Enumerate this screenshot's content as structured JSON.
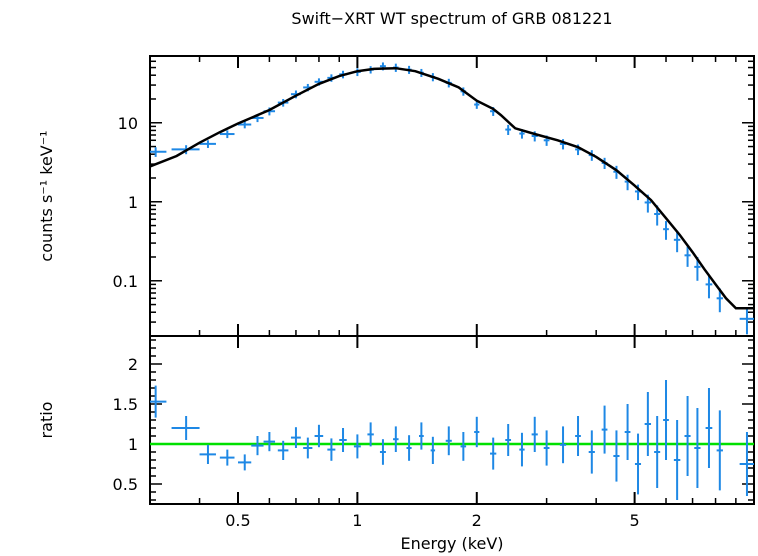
{
  "chart_data": [
    {
      "type": "scatter",
      "title": "Swift−XRT WT spectrum of GRB 081221",
      "xlabel": "",
      "ylabel": "counts s⁻¹ keV⁻¹",
      "xscale": "log",
      "yscale": "log",
      "xlim": [
        0.3,
        10
      ],
      "ylim": [
        0.02,
        70
      ],
      "yticks": [
        0.1,
        1,
        10
      ],
      "ytick_labels": [
        "0.1",
        "1",
        "10"
      ],
      "colors": {
        "data": "#1e88e5",
        "model": "#000000"
      },
      "series": [
        {
          "role": "data",
          "x": [
            0.31,
            0.37,
            0.42,
            0.47,
            0.52,
            0.56,
            0.6,
            0.65,
            0.7,
            0.75,
            0.8,
            0.86,
            0.92,
            1.0,
            1.08,
            1.16,
            1.25,
            1.35,
            1.45,
            1.55,
            1.7,
            1.85,
            2.0,
            2.2,
            2.4,
            2.6,
            2.8,
            3.0,
            3.3,
            3.6,
            3.9,
            4.2,
            4.5,
            4.8,
            5.1,
            5.4,
            5.7,
            6.0,
            6.4,
            6.8,
            7.2,
            7.7,
            8.2,
            9.6
          ],
          "y": [
            4.3,
            4.6,
            5.4,
            7.2,
            9.5,
            11.5,
            14,
            18,
            23,
            28,
            33,
            37,
            41,
            44,
            47,
            52,
            50,
            47,
            43,
            38,
            32,
            25,
            17,
            14,
            8.2,
            7.3,
            6.8,
            6.0,
            5.4,
            4.6,
            3.9,
            3.1,
            2.4,
            1.8,
            1.35,
            0.98,
            0.7,
            0.45,
            0.33,
            0.21,
            0.15,
            0.09,
            0.06,
            0.033
          ],
          "xerr": [
            0.02,
            0.03,
            0.02,
            0.02,
            0.02,
            0.02,
            0.02,
            0.02,
            0.02,
            0.02,
            0.02,
            0.02,
            0.02,
            0.02,
            0.02,
            0.02,
            0.02,
            0.02,
            0.02,
            0.02,
            0.03,
            0.03,
            0.03,
            0.04,
            0.04,
            0.04,
            0.05,
            0.05,
            0.06,
            0.06,
            0.07,
            0.07,
            0.08,
            0.08,
            0.09,
            0.1,
            0.1,
            0.1,
            0.12,
            0.12,
            0.13,
            0.15,
            0.15,
            0.4
          ],
          "yerr": [
            0.6,
            0.6,
            0.6,
            0.8,
            1.0,
            1.3,
            1.6,
            2.0,
            2.6,
            3.0,
            3.5,
            4.0,
            4.5,
            5.0,
            5.0,
            6.0,
            6.0,
            5.5,
            5.0,
            4.5,
            4.0,
            3.0,
            2.0,
            1.8,
            1.2,
            1.0,
            1.0,
            0.9,
            0.8,
            0.7,
            0.6,
            0.5,
            0.45,
            0.4,
            0.3,
            0.25,
            0.2,
            0.12,
            0.1,
            0.06,
            0.05,
            0.03,
            0.02,
            0.012
          ]
        },
        {
          "role": "model",
          "x": [
            0.3,
            0.35,
            0.4,
            0.45,
            0.5,
            0.55,
            0.6,
            0.7,
            0.8,
            0.9,
            1.0,
            1.1,
            1.25,
            1.4,
            1.6,
            1.8,
            2.0,
            2.2,
            2.3,
            2.5,
            2.8,
            3.2,
            3.6,
            4.0,
            4.5,
            5.0,
            5.5,
            6.0,
            6.5,
            7.0,
            7.5,
            8.0,
            8.5,
            9.0,
            10.0
          ],
          "y": [
            2.8,
            3.8,
            5.6,
            7.6,
            9.8,
            12,
            14.5,
            22,
            31,
            39,
            45,
            48,
            49,
            45,
            36,
            28,
            19,
            15,
            12.5,
            8.5,
            7.2,
            6.0,
            4.9,
            3.7,
            2.5,
            1.6,
            1.05,
            0.62,
            0.38,
            0.23,
            0.14,
            0.09,
            0.06,
            0.045,
            0.045
          ]
        }
      ]
    },
    {
      "type": "scatter",
      "title": "",
      "xlabel": "Energy (keV)",
      "ylabel": "ratio",
      "xscale": "log",
      "xlim": [
        0.3,
        10
      ],
      "ylim": [
        0.25,
        2.35
      ],
      "xticks": [
        0.5,
        1,
        2,
        5
      ],
      "xtick_labels": [
        "0.5",
        "1",
        "2",
        "5"
      ],
      "yticks": [
        0.5,
        1,
        1.5,
        2
      ],
      "ytick_labels": [
        "0.5",
        "1",
        "1.5",
        "2"
      ],
      "reference_line": 1,
      "colors": {
        "data": "#1e88e5",
        "reference": "#00e000"
      },
      "series": [
        {
          "role": "data",
          "x": [
            0.31,
            0.37,
            0.42,
            0.47,
            0.52,
            0.56,
            0.6,
            0.65,
            0.7,
            0.75,
            0.8,
            0.86,
            0.92,
            1.0,
            1.08,
            1.16,
            1.25,
            1.35,
            1.45,
            1.55,
            1.7,
            1.85,
            2.0,
            2.2,
            2.4,
            2.6,
            2.8,
            3.0,
            3.3,
            3.6,
            3.9,
            4.2,
            4.5,
            4.8,
            5.1,
            5.4,
            5.7,
            6.0,
            6.4,
            6.8,
            7.2,
            7.7,
            8.2,
            9.6
          ],
          "y": [
            1.53,
            1.2,
            0.87,
            0.83,
            0.77,
            0.98,
            1.03,
            0.92,
            1.08,
            0.95,
            1.1,
            0.93,
            1.05,
            0.97,
            1.12,
            0.9,
            1.06,
            0.95,
            1.1,
            0.92,
            1.04,
            0.97,
            1.15,
            0.88,
            1.05,
            0.93,
            1.12,
            0.95,
            0.99,
            1.1,
            0.9,
            1.18,
            0.85,
            1.15,
            0.75,
            1.25,
            0.9,
            1.3,
            0.8,
            1.1,
            0.95,
            1.2,
            0.92,
            0.75
          ],
          "xerr": [
            0.02,
            0.03,
            0.02,
            0.02,
            0.02,
            0.02,
            0.02,
            0.02,
            0.02,
            0.02,
            0.02,
            0.02,
            0.02,
            0.02,
            0.02,
            0.02,
            0.02,
            0.02,
            0.02,
            0.02,
            0.03,
            0.03,
            0.03,
            0.04,
            0.04,
            0.04,
            0.05,
            0.05,
            0.06,
            0.06,
            0.07,
            0.07,
            0.08,
            0.08,
            0.09,
            0.1,
            0.1,
            0.1,
            0.12,
            0.12,
            0.13,
            0.15,
            0.15,
            0.4
          ],
          "yerr": [
            0.2,
            0.15,
            0.12,
            0.1,
            0.1,
            0.12,
            0.12,
            0.12,
            0.13,
            0.13,
            0.14,
            0.14,
            0.15,
            0.15,
            0.15,
            0.16,
            0.16,
            0.16,
            0.17,
            0.17,
            0.18,
            0.18,
            0.19,
            0.2,
            0.2,
            0.21,
            0.22,
            0.22,
            0.23,
            0.25,
            0.27,
            0.3,
            0.32,
            0.35,
            0.38,
            0.4,
            0.45,
            0.5,
            0.5,
            0.5,
            0.5,
            0.5,
            0.5,
            0.4
          ]
        }
      ]
    }
  ]
}
